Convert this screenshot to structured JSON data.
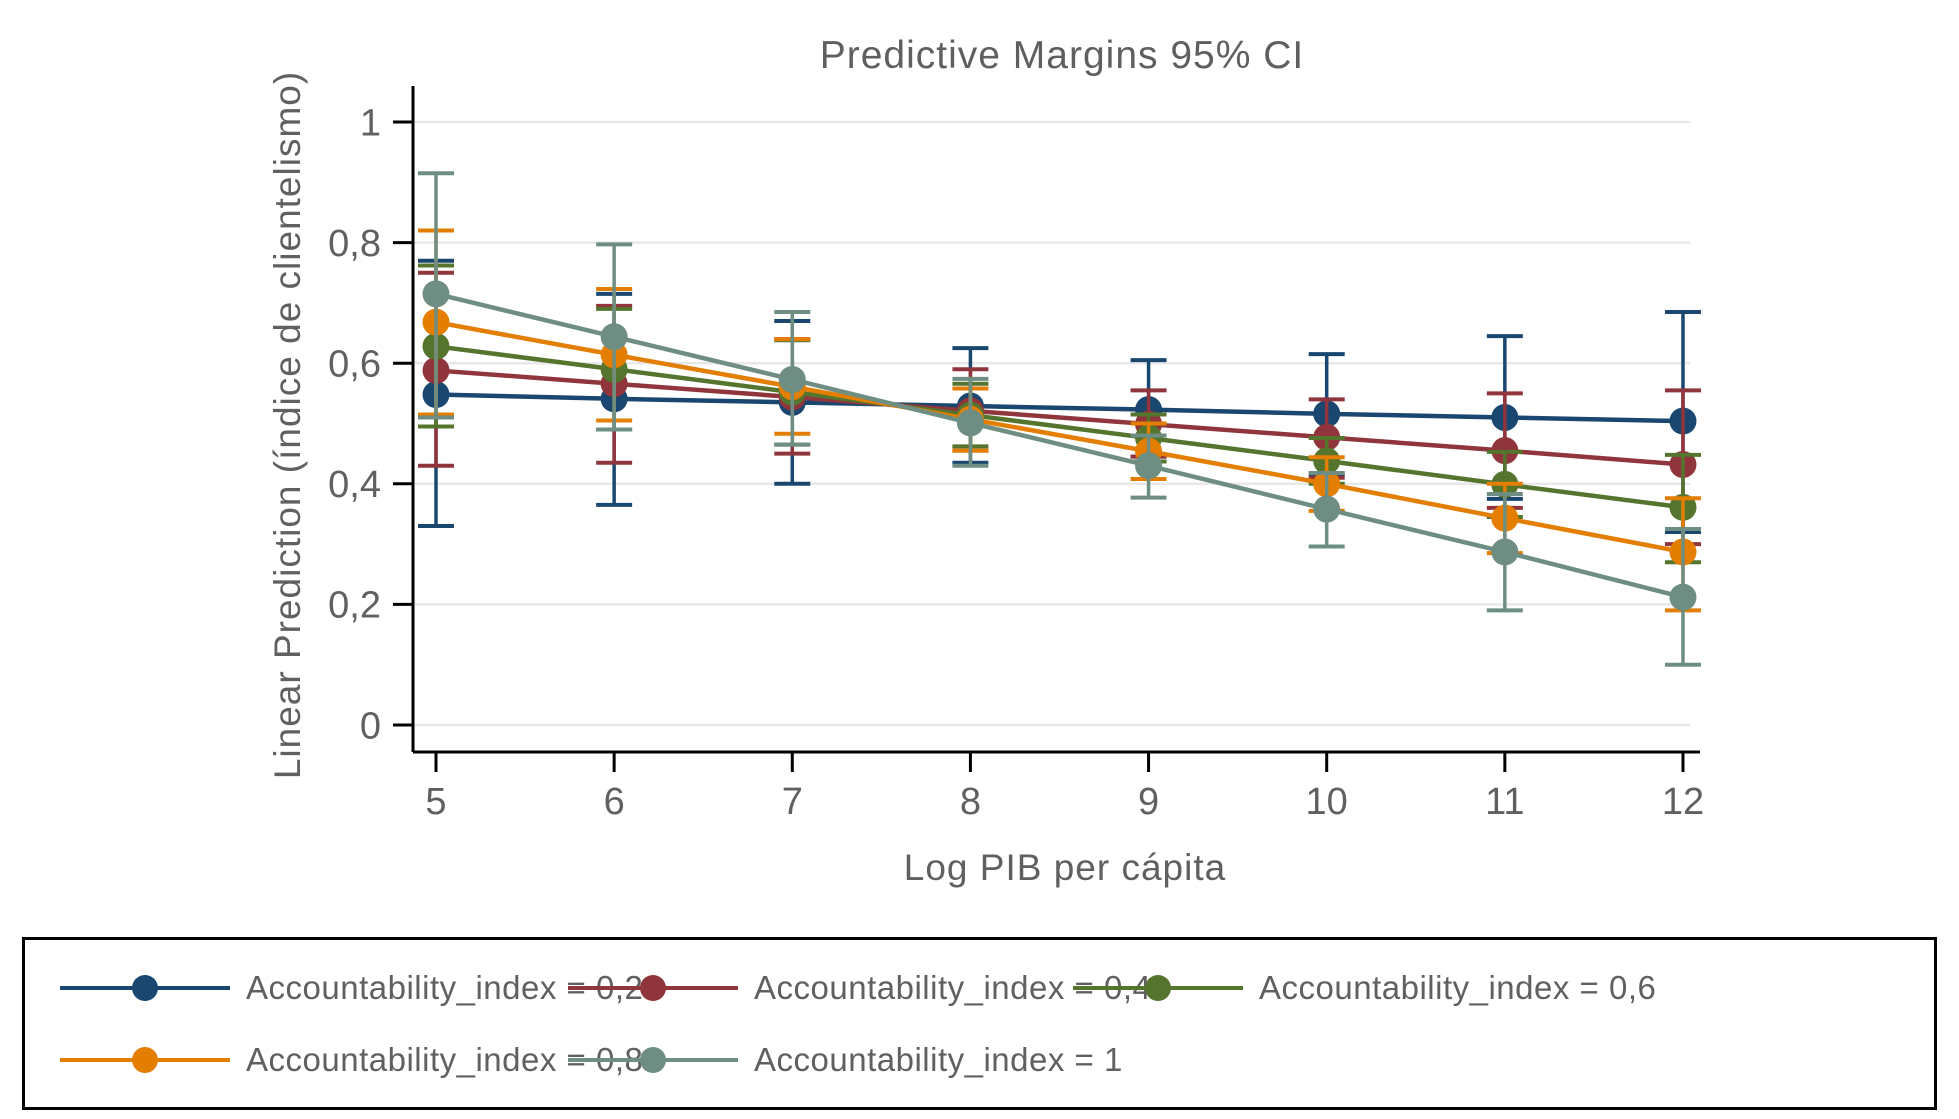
{
  "figure": {
    "background": "#ffffff",
    "text_color": "#606060",
    "gridline_color": "#e8e8e8",
    "axis_color": "#000000",
    "legend_border_color": "#000000"
  },
  "chart_data": {
    "type": "line",
    "title": "Predictive Margins 95% CI",
    "xlabel": "Log PIB per cápita",
    "ylabel": "Linear Prediction (índice de clientelismo)",
    "x": [
      5,
      6,
      7,
      8,
      9,
      10,
      11,
      12
    ],
    "x_tick_labels": [
      "5",
      "6",
      "7",
      "8",
      "9",
      "10",
      "11",
      "12"
    ],
    "y_ticks": [
      0,
      0.2,
      0.4,
      0.6,
      0.8,
      1
    ],
    "y_tick_labels": [
      "0",
      "0,2",
      "0,4",
      "0,6",
      "0,8",
      "1"
    ],
    "xlim": [
      5,
      12
    ],
    "ylim": [
      0,
      1
    ],
    "grid": "horizontal",
    "error_bars": "95% CI",
    "legend_position": "bottom-box",
    "series": [
      {
        "name": "Accountability_index = 0,2",
        "color": "#1a476f",
        "values": [
          0.548,
          0.541,
          0.535,
          0.529,
          0.523,
          0.516,
          0.51,
          0.504
        ],
        "ci_low": [
          0.33,
          0.365,
          0.4,
          0.435,
          0.445,
          0.415,
          0.375,
          0.32
        ],
        "ci_high": [
          0.77,
          0.715,
          0.67,
          0.625,
          0.605,
          0.615,
          0.645,
          0.685
        ]
      },
      {
        "name": "Accountability_index = 0,4",
        "color": "#90353b",
        "values": [
          0.588,
          0.566,
          0.544,
          0.521,
          0.499,
          0.477,
          0.455,
          0.432
        ],
        "ci_low": [
          0.43,
          0.435,
          0.45,
          0.455,
          0.445,
          0.41,
          0.36,
          0.3
        ],
        "ci_high": [
          0.75,
          0.695,
          0.64,
          0.59,
          0.555,
          0.54,
          0.55,
          0.555
        ]
      },
      {
        "name": "Accountability_index = 0,6",
        "color": "#55752f",
        "values": [
          0.628,
          0.59,
          0.552,
          0.514,
          0.476,
          0.438,
          0.399,
          0.361
        ],
        "ci_low": [
          0.495,
          0.49,
          0.465,
          0.462,
          0.437,
          0.4,
          0.345,
          0.27
        ],
        "ci_high": [
          0.762,
          0.69,
          0.638,
          0.566,
          0.515,
          0.476,
          0.453,
          0.448
        ]
      },
      {
        "name": "Accountability_index = 0,8",
        "color": "#e37e00",
        "values": [
          0.668,
          0.614,
          0.561,
          0.507,
          0.454,
          0.4,
          0.343,
          0.287
        ],
        "ci_low": [
          0.515,
          0.505,
          0.483,
          0.455,
          0.408,
          0.355,
          0.285,
          0.19
        ],
        "ci_high": [
          0.82,
          0.723,
          0.64,
          0.558,
          0.5,
          0.444,
          0.4,
          0.376
        ]
      },
      {
        "name": "Accountability_index = 1",
        "color": "#6e8e84",
        "values": [
          0.715,
          0.644,
          0.573,
          0.501,
          0.43,
          0.358,
          0.287,
          0.212
        ],
        "ci_low": [
          0.51,
          0.49,
          0.465,
          0.43,
          0.377,
          0.296,
          0.19,
          0.1
        ],
        "ci_high": [
          0.915,
          0.797,
          0.685,
          0.574,
          0.48,
          0.418,
          0.383,
          0.325
        ]
      }
    ]
  }
}
